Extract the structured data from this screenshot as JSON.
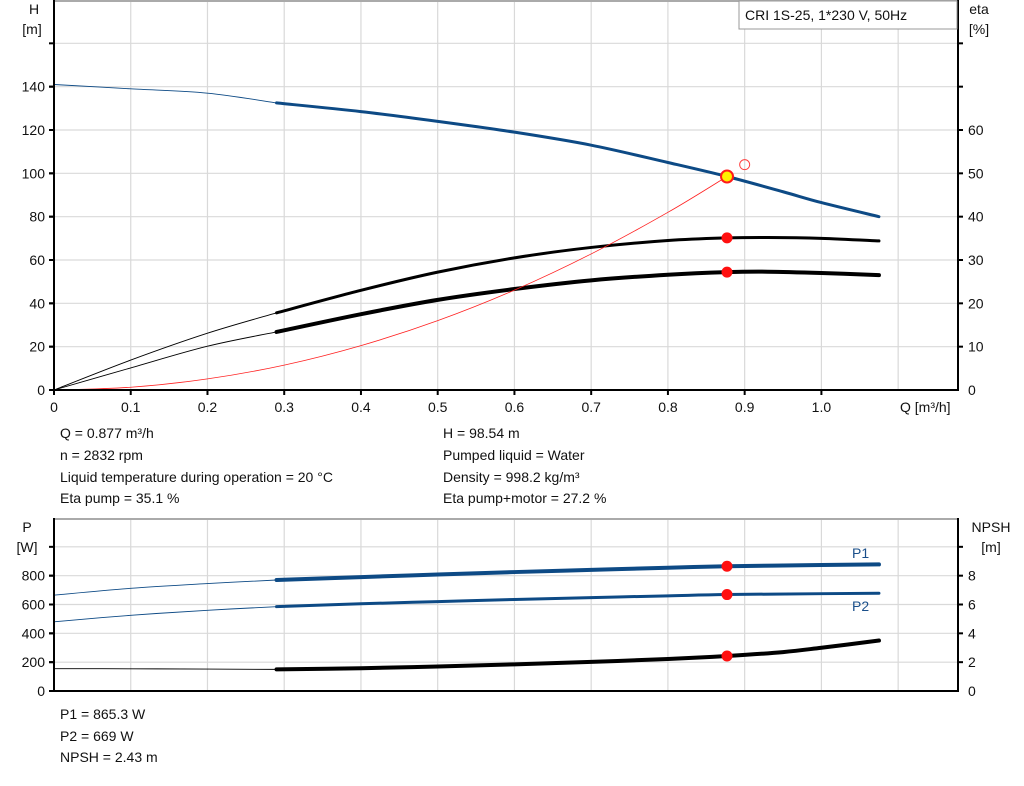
{
  "chart_data": [
    {
      "type": "line",
      "title": "",
      "legend_box": "CRI 1S-25, 1*230 V, 50Hz",
      "xlabel": "Q [m³/h]",
      "ylabel_left": [
        "H",
        "[m]"
      ],
      "ylabel_right": [
        "eta",
        "[%]"
      ],
      "x_ticks": [
        "0",
        "0.1",
        "0.2",
        "0.3",
        "0.4",
        "0.5",
        "0.6",
        "0.7",
        "0.8",
        "0.9",
        "1.0"
      ],
      "y_left_ticks": [
        "0",
        "20",
        "40",
        "60",
        "80",
        "100",
        "120",
        "140"
      ],
      "y_right_ticks": [
        "0",
        "10",
        "20",
        "30",
        "40",
        "50",
        "60"
      ],
      "xlim": [
        0,
        1.178
      ],
      "ylim_left": [
        0,
        180
      ],
      "ylim_right": [
        0,
        90
      ],
      "grid": true,
      "series": [
        {
          "key": "H",
          "axis": "left",
          "color": "#0d4a85",
          "thick_from": 0.29,
          "x": [
            0,
            0.1,
            0.2,
            0.29,
            0.4,
            0.5,
            0.6,
            0.7,
            0.8,
            0.877,
            0.95,
            1.0,
            1.075
          ],
          "y": [
            141,
            139,
            137,
            132.5,
            128.5,
            124,
            119,
            113,
            105,
            98.54,
            91.5,
            86.5,
            80
          ]
        },
        {
          "key": "eta_pump",
          "axis": "right",
          "color": "#000000",
          "thick_from": 0.29,
          "x": [
            0,
            0.1,
            0.2,
            0.29,
            0.4,
            0.5,
            0.6,
            0.7,
            0.8,
            0.877,
            0.93,
            1.0,
            1.075
          ],
          "y": [
            0,
            6.9,
            13.1,
            17.8,
            23,
            27.2,
            30.5,
            32.9,
            34.5,
            35.1,
            35.2,
            35,
            34.4
          ]
        },
        {
          "key": "eta_pump_motor",
          "axis": "right",
          "color": "#000000",
          "thick_from": 0.29,
          "x": [
            0,
            0.1,
            0.2,
            0.29,
            0.4,
            0.5,
            0.6,
            0.7,
            0.8,
            0.877,
            0.93,
            1.0,
            1.075
          ],
          "y": [
            0,
            5.1,
            10.1,
            13.4,
            17.5,
            20.8,
            23.3,
            25.3,
            26.6,
            27.2,
            27.3,
            27,
            26.5
          ]
        },
        {
          "key": "system",
          "axis": "left",
          "color": "#ff2020",
          "thin": true,
          "x": [
            0,
            0.1,
            0.2,
            0.3,
            0.4,
            0.5,
            0.6,
            0.7,
            0.8,
            0.877
          ],
          "y": [
            0,
            1.28,
            5.12,
            11.5,
            20.5,
            32,
            46.1,
            62.8,
            82,
            98.54
          ]
        }
      ],
      "markers": [
        {
          "name": "duty-point",
          "x": 0.877,
          "y": 98.54,
          "axis": "left",
          "style": "yellow"
        },
        {
          "name": "requested-point",
          "x": 0.9,
          "y": 104,
          "axis": "left",
          "style": "hollow"
        },
        {
          "name": "eta-pump-point",
          "x": 0.877,
          "y": 35.1,
          "axis": "right",
          "style": "red"
        },
        {
          "name": "eta-pump-motor-point",
          "x": 0.877,
          "y": 27.2,
          "axis": "right",
          "style": "red"
        }
      ]
    },
    {
      "type": "line",
      "title": "",
      "ylabel_left": [
        "P",
        "[W]"
      ],
      "ylabel_right": [
        "NPSH",
        "[m]"
      ],
      "y_left_ticks": [
        "0",
        "200",
        "400",
        "600",
        "800"
      ],
      "y_right_ticks": [
        "0",
        "2",
        "4",
        "6",
        "8"
      ],
      "xlim": [
        0,
        1.178
      ],
      "ylim_left": [
        0,
        1200
      ],
      "ylim_right": [
        0,
        12
      ],
      "grid": true,
      "series": [
        {
          "key": "P1",
          "name": "P1",
          "axis": "left",
          "color": "#0d4a85",
          "thick_from": 0.29,
          "x": [
            0,
            0.1,
            0.2,
            0.29,
            0.4,
            0.5,
            0.6,
            0.7,
            0.8,
            0.877,
            1.0,
            1.075
          ],
          "y": [
            665,
            712,
            745,
            770,
            790,
            808,
            825,
            840,
            855,
            865,
            874,
            878
          ]
        },
        {
          "key": "P2",
          "name": "P2",
          "axis": "left",
          "color": "#0d4a85",
          "thick_from": 0.29,
          "x": [
            0,
            0.1,
            0.2,
            0.29,
            0.4,
            0.5,
            0.6,
            0.7,
            0.8,
            0.877,
            1.0,
            1.075
          ],
          "y": [
            480,
            525,
            560,
            585,
            605,
            620,
            635,
            648,
            660,
            669,
            675,
            678
          ]
        },
        {
          "key": "NPSH",
          "axis": "right",
          "color": "#000000",
          "thick_from": 0.29,
          "x": [
            0,
            0.1,
            0.2,
            0.29,
            0.4,
            0.5,
            0.6,
            0.7,
            0.8,
            0.877,
            0.95,
            1.0,
            1.075
          ],
          "y": [
            1.55,
            1.54,
            1.52,
            1.5,
            1.58,
            1.7,
            1.85,
            2.02,
            2.22,
            2.43,
            2.7,
            3.0,
            3.5
          ]
        }
      ],
      "markers": [
        {
          "name": "p1-point",
          "x": 0.877,
          "y": 865.3,
          "axis": "left",
          "style": "red"
        },
        {
          "name": "p2-point",
          "x": 0.877,
          "y": 669,
          "axis": "left",
          "style": "red"
        },
        {
          "name": "npsh-point",
          "x": 0.877,
          "y": 2.43,
          "axis": "right",
          "style": "red"
        }
      ]
    }
  ],
  "info_top": {
    "left": [
      "Q = 0.877 m³/h",
      "n = 2832 rpm",
      "Liquid temperature during operation = 20 °C",
      "Eta pump = 35.1 %"
    ],
    "right": [
      "H = 98.54 m",
      "Pumped liquid = Water",
      "Density = 998.2 kg/m³",
      "Eta pump+motor = 27.2 %"
    ]
  },
  "info_bottom": [
    "P1 = 865.3 W",
    "P2 = 669 W",
    "NPSH = 2.43 m"
  ]
}
